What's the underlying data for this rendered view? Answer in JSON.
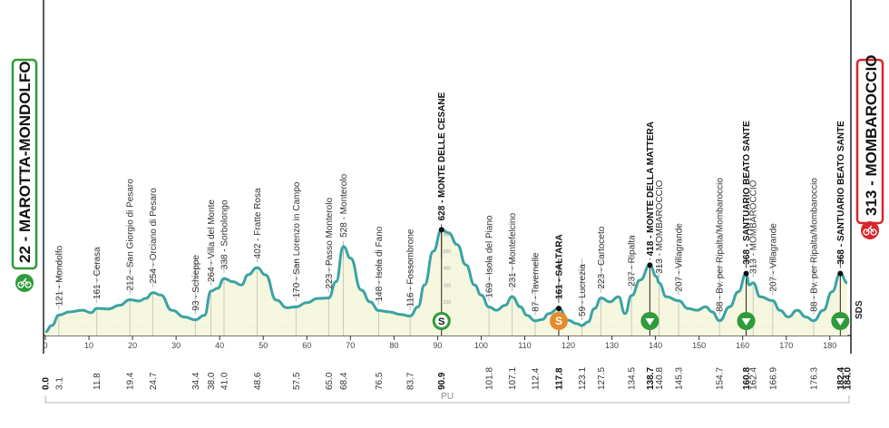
{
  "start_label": "22 - MAROTTA-MONDOLFO",
  "finish_label": "313 - MOMBAROCCIO",
  "pu_label": "PU",
  "sds_label": "SDS",
  "colors": {
    "profile_line": "#3aa3a3",
    "profile_fill": "#f6f7df",
    "start_box": "#2e9d3a",
    "finish_box": "#d8262a",
    "sprint_marker": "#e58b2e",
    "climb_marker": "#2f9b3a",
    "km_marker": "#2f9b3a"
  },
  "chart_data": {
    "type": "area",
    "title": "",
    "xlabel": "",
    "ylabel": "",
    "xlim": [
      0,
      184
    ],
    "ylim": [
      0,
      700
    ],
    "x_ticks": [
      0,
      10,
      20,
      30,
      40,
      50,
      60,
      70,
      80,
      90,
      100,
      110,
      120,
      130,
      140,
      150,
      160,
      170,
      180
    ],
    "profile": [
      [
        0,
        22
      ],
      [
        1.5,
        60
      ],
      [
        3.1,
        121
      ],
      [
        5.5,
        140
      ],
      [
        8.5,
        150
      ],
      [
        10.5,
        135
      ],
      [
        11.8,
        161
      ],
      [
        14.5,
        158
      ],
      [
        17,
        180
      ],
      [
        19.4,
        212
      ],
      [
        21.5,
        205
      ],
      [
        23,
        220
      ],
      [
        24.7,
        254
      ],
      [
        26.5,
        240
      ],
      [
        29,
        150
      ],
      [
        32,
        110
      ],
      [
        34.4,
        93
      ],
      [
        36.5,
        120
      ],
      [
        38,
        264
      ],
      [
        39.5,
        280
      ],
      [
        41,
        338
      ],
      [
        43,
        320
      ],
      [
        45,
        300
      ],
      [
        46.5,
        360
      ],
      [
        48.6,
        402
      ],
      [
        50.5,
        360
      ],
      [
        53,
        210
      ],
      [
        55.5,
        165
      ],
      [
        57.5,
        170
      ],
      [
        60,
        195
      ],
      [
        62.5,
        220
      ],
      [
        65,
        223
      ],
      [
        66.7,
        320
      ],
      [
        68.4,
        528
      ],
      [
        70,
        460
      ],
      [
        72.5,
        270
      ],
      [
        74.5,
        200
      ],
      [
        76.5,
        148
      ],
      [
        79,
        140
      ],
      [
        81.5,
        125
      ],
      [
        83.7,
        116
      ],
      [
        85.5,
        170
      ],
      [
        87,
        300
      ],
      [
        89,
        500
      ],
      [
        90.9,
        628
      ],
      [
        92.5,
        610
      ],
      [
        94.5,
        540
      ],
      [
        96.5,
        420
      ],
      [
        98.5,
        300
      ],
      [
        100,
        240
      ],
      [
        101.8,
        169
      ],
      [
        103.5,
        150
      ],
      [
        105.5,
        180
      ],
      [
        107.1,
        231
      ],
      [
        109,
        170
      ],
      [
        110.5,
        120
      ],
      [
        112.4,
        87
      ],
      [
        114,
        95
      ],
      [
        115.5,
        130
      ],
      [
        117.8,
        161
      ],
      [
        120,
        90
      ],
      [
        122,
        70
      ],
      [
        123.1,
        59
      ],
      [
        124.5,
        80
      ],
      [
        126,
        160
      ],
      [
        127.5,
        223
      ],
      [
        129.5,
        200
      ],
      [
        131.5,
        230
      ],
      [
        133,
        130
      ],
      [
        134.5,
        237
      ],
      [
        136.5,
        330
      ],
      [
        138.7,
        418
      ],
      [
        140.2,
        350
      ],
      [
        140.8,
        313
      ],
      [
        142.5,
        230
      ],
      [
        145.3,
        207
      ],
      [
        147.5,
        160
      ],
      [
        149.5,
        150
      ],
      [
        151.5,
        170
      ],
      [
        153,
        140
      ],
      [
        154.7,
        88
      ],
      [
        157,
        170
      ],
      [
        159,
        260
      ],
      [
        160.8,
        368
      ],
      [
        161.5,
        300
      ],
      [
        162.4,
        313
      ],
      [
        164,
        230
      ],
      [
        166.9,
        207
      ],
      [
        168.5,
        150
      ],
      [
        170.5,
        110
      ],
      [
        172.5,
        150
      ],
      [
        174.5,
        110
      ],
      [
        176.3,
        88
      ],
      [
        178.5,
        150
      ],
      [
        180.5,
        260
      ],
      [
        182.4,
        368
      ],
      [
        184,
        313
      ]
    ],
    "places": [
      {
        "km": 0.0,
        "label": "22 - MAROTTA-MONDOLFO",
        "km_label": "0.0",
        "strong": true
      },
      {
        "km": 3.1,
        "label": "121 - Mondolfo",
        "km_label": "3.1"
      },
      {
        "km": 11.8,
        "label": "161 - Cerasa",
        "km_label": "11.8"
      },
      {
        "km": 19.4,
        "label": "212 - San Giorgio di Pesaro",
        "km_label": "19.4"
      },
      {
        "km": 24.7,
        "label": "254 - Orciano di Pesaro",
        "km_label": "24.7"
      },
      {
        "km": 34.4,
        "label": "93 - Schieppe",
        "km_label": "34.4"
      },
      {
        "km": 38.0,
        "label": "264 - Villa del Monte",
        "km_label": "38.0"
      },
      {
        "km": 41.0,
        "label": "338 - Sorbolongo",
        "km_label": "41.0"
      },
      {
        "km": 48.6,
        "label": "402 - Fratte Rosa",
        "km_label": "48.6"
      },
      {
        "km": 57.5,
        "label": "170 - San Lorenzo in Campo",
        "km_label": "57.5"
      },
      {
        "km": 65.0,
        "label": "223 - Passo Monterolo",
        "km_label": "65.0"
      },
      {
        "km": 68.4,
        "label": "528 - Monterolo",
        "km_label": "68.4"
      },
      {
        "km": 76.5,
        "label": "148 - Isola di Fano",
        "km_label": "76.5"
      },
      {
        "km": 83.7,
        "label": "116 - Fossombrone",
        "km_label": "83.7"
      },
      {
        "km": 90.9,
        "label": "628 - MONTE DELLE CESANE",
        "km_label": "90.9",
        "strong": true
      },
      {
        "km": 101.8,
        "label": "169 - Isola del Piano",
        "km_label": "101.8"
      },
      {
        "km": 107.1,
        "label": "231 - Montefelcino",
        "km_label": "107.1"
      },
      {
        "km": 112.4,
        "label": "87 - Tavernelle",
        "km_label": "112.4"
      },
      {
        "km": 117.8,
        "label": "161 - SALTARA",
        "km_label": "117.8",
        "strong": true
      },
      {
        "km": 123.1,
        "label": "59 - Lucrezia",
        "km_label": "123.1"
      },
      {
        "km": 127.5,
        "label": "223 - Cartoceto",
        "km_label": "127.5"
      },
      {
        "km": 134.5,
        "label": "237 - Ripalta",
        "km_label": "134.5"
      },
      {
        "km": 138.7,
        "label": "418 - MONTE DELLA MATTERA",
        "km_label": "138.7",
        "strong": true
      },
      {
        "km": 140.8,
        "label": "313 - MOMBAROCCIO",
        "km_label": "140.8"
      },
      {
        "km": 145.3,
        "label": "207 - Villagrande",
        "km_label": "145.3"
      },
      {
        "km": 154.7,
        "label": "88 - Bv. per Ripalta/Mombaroccio",
        "km_label": "154.7"
      },
      {
        "km": 160.8,
        "label": "368 - SANTUARIO BEATO SANTE",
        "km_label": "160.8",
        "strong": true
      },
      {
        "km": 162.4,
        "label": "313 - MOMBAROCCIO",
        "km_label": "162.4"
      },
      {
        "km": 166.9,
        "label": "207 - Villagrande",
        "km_label": "166.9"
      },
      {
        "km": 176.3,
        "label": "88 - Bv. per Ripalta/Mombaroccio",
        "km_label": "176.3"
      },
      {
        "km": 182.4,
        "label": "368 - SANTUARIO BEATO SANTE",
        "km_label": "182.4",
        "strong": true
      },
      {
        "km": 184.0,
        "label": "313 - MOMBAROCCIO",
        "km_label": "184.0",
        "strong": true
      }
    ],
    "markers": [
      {
        "km": 90.9,
        "kind": "climb-badge",
        "symbol": "S"
      },
      {
        "km": 117.8,
        "kind": "sprint",
        "symbol": "S"
      },
      {
        "km": 138.7,
        "kind": "km-marker"
      },
      {
        "km": 160.8,
        "kind": "km-marker"
      },
      {
        "km": 182.4,
        "kind": "km-marker"
      }
    ],
    "altitude_ticks": [
      100,
      200,
      300,
      400,
      500,
      600
    ]
  }
}
